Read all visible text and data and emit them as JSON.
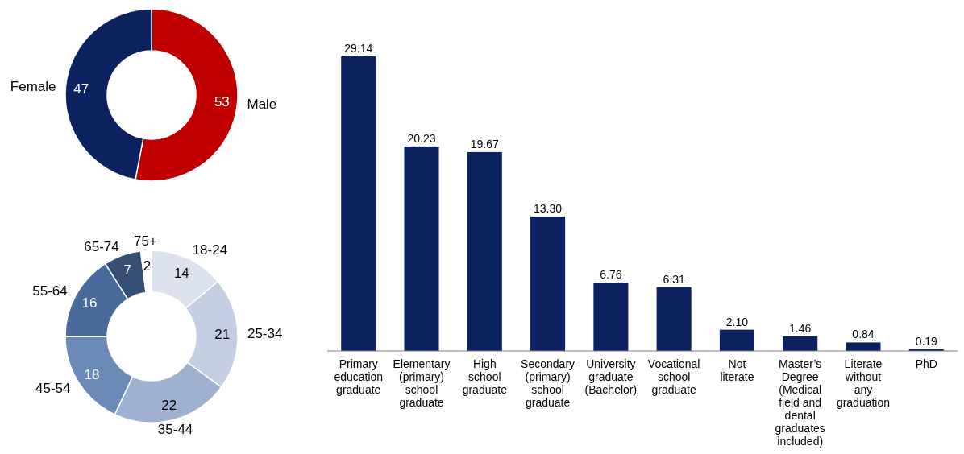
{
  "chart_data": [
    {
      "type": "donut",
      "categories": [
        "Male",
        "Female"
      ],
      "values": [
        53,
        47
      ],
      "colors": [
        "#c00000",
        "#0c2160"
      ],
      "data_labels": true
    },
    {
      "type": "donut",
      "categories": [
        "18-24",
        "25-34",
        "35-44",
        "45-54",
        "55-64",
        "65-74",
        "75+"
      ],
      "values": [
        14,
        21,
        22,
        18,
        16,
        7,
        2
      ],
      "colors": [
        "#dde3ee",
        "#c3cee2",
        "#9fb1d0",
        "#6b8ab8",
        "#4a6a9c",
        "#384f75",
        "#ffffff"
      ],
      "data_labels": true
    },
    {
      "type": "bar",
      "categories": [
        "Primary education graduate",
        "Elementary (primary) school graduate",
        "High school graduate",
        "Secondary (primary) school graduate",
        "University graduate (Bachelor)",
        "Vocational school graduate",
        "Not literate",
        "Master’s Degree (Medical field and dental graduates included)",
        "Literate without any graduation",
        "PhD"
      ],
      "values": [
        29.14,
        20.23,
        19.67,
        13.3,
        6.76,
        6.31,
        2.1,
        1.46,
        0.84,
        0.19
      ],
      "value_labels": [
        "29.14",
        "20.23",
        "19.67",
        "13.30",
        "6.76",
        "6.31",
        "2.10",
        "1.46",
        "0.84",
        "0.19"
      ],
      "color": "#0c2160"
    }
  ]
}
